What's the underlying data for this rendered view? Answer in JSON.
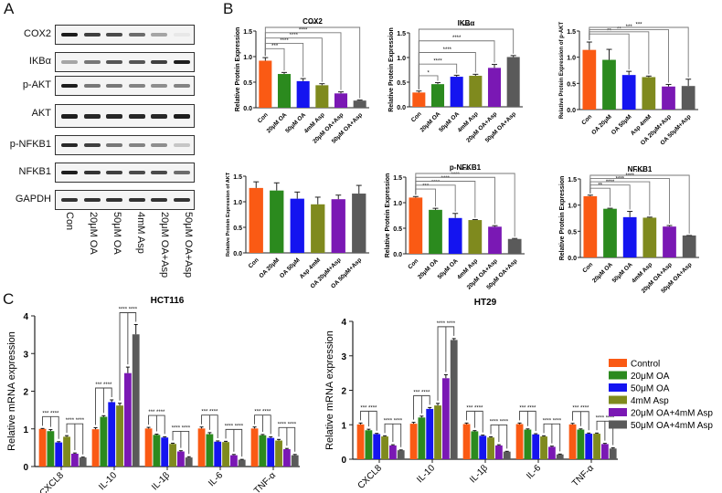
{
  "panels": {
    "a": "A",
    "b": "B",
    "c": "C"
  },
  "blot": {
    "proteins": [
      "COX2",
      "IKBα",
      "p-AKT",
      "AKT",
      "p-NFKB1",
      "NFKB1",
      "GAPDH"
    ],
    "lanes": [
      "Con",
      "20μM OA",
      "50μM OA",
      "4mM Asp",
      "20μM OA+Asp",
      "50μM OA+Asp"
    ],
    "band_intensity": [
      [
        0.95,
        0.8,
        0.75,
        0.6,
        0.35,
        0.05
      ],
      [
        0.35,
        0.55,
        0.7,
        0.7,
        0.8,
        0.95
      ],
      [
        0.95,
        0.55,
        0.55,
        0.5,
        0.45,
        0.5
      ],
      [
        0.95,
        0.9,
        0.9,
        0.9,
        0.9,
        0.95
      ],
      [
        0.9,
        0.8,
        0.55,
        0.5,
        0.45,
        0.2
      ],
      [
        0.95,
        0.85,
        0.8,
        0.75,
        0.75,
        0.6
      ],
      [
        0.85,
        0.85,
        0.85,
        0.85,
        0.85,
        0.85
      ]
    ]
  },
  "chart_data": [
    {
      "type": "bar",
      "title": "COX2",
      "ylabel": "Relative Protein Expression",
      "categories": [
        "Con",
        "20μM OA",
        "50μM OA",
        "4mM Asp",
        "20μM OA+Asp",
        "50μM OA+Asp"
      ],
      "values": [
        0.92,
        0.66,
        0.52,
        0.44,
        0.28,
        0.14
      ],
      "errors": [
        0.06,
        0.03,
        0.05,
        0.03,
        0.03,
        0.01
      ],
      "significance": [
        "***",
        "****",
        "****",
        "****",
        "****"
      ],
      "ylim": [
        0,
        1.5
      ],
      "yticks": [
        "0.0",
        "0.5",
        "1.0",
        "1.5"
      ]
    },
    {
      "type": "bar",
      "title": "IKBα",
      "ylabel": "Relative Protein Expression",
      "categories": [
        "Con",
        "20μM OA",
        "50μM OA",
        "4mM Asp",
        "20μM OA+Asp",
        "50μM OA+Asp"
      ],
      "values": [
        0.29,
        0.46,
        0.61,
        0.63,
        0.79,
        1.01
      ],
      "errors": [
        0.03,
        0.03,
        0.03,
        0.03,
        0.07,
        0.03
      ],
      "significance": [
        "*",
        "****",
        "****",
        "****",
        "****"
      ],
      "ylim": [
        0,
        1.5
      ],
      "yticks": [
        "0.0",
        "0.5",
        "1.0",
        "1.5"
      ]
    },
    {
      "type": "bar",
      "title": "",
      "ylabel": "Relative Protein Expression of p-AKT",
      "categories": [
        "Con",
        "OA 20μM",
        "OA 50μM",
        "Asp 4mM",
        "OA 20μM+Asp",
        "OA 50μM+Asp"
      ],
      "values": [
        1.14,
        0.95,
        0.66,
        0.62,
        0.44,
        0.45
      ],
      "errors": [
        0.15,
        0.2,
        0.07,
        0.02,
        0.04,
        0.13
      ],
      "significance": [
        "",
        "**",
        "**",
        "***",
        "***"
      ],
      "ylim": [
        0,
        1.5
      ],
      "yticks": [
        "0.0",
        "0.5",
        "1.0",
        "1.5"
      ]
    },
    {
      "type": "bar",
      "title": "",
      "ylabel": "Relative Protein Expression of AKT",
      "categories": [
        "Con",
        "OA 20μM",
        "OA 50μM",
        "Asp 4mM",
        "OA 20μM+Asp",
        "OA 50μM+Asp"
      ],
      "values": [
        1.27,
        1.22,
        1.06,
        0.95,
        1.05,
        1.16
      ],
      "errors": [
        0.12,
        0.15,
        0.13,
        0.14,
        0.08,
        0.16
      ],
      "significance": [
        "",
        "",
        "",
        "",
        ""
      ],
      "ylim": [
        0,
        1.5
      ],
      "yticks": [
        "0.0",
        "0.5",
        "1.0",
        "1.5"
      ]
    },
    {
      "type": "bar",
      "title": "p-NFKB1",
      "ylabel": "Relative Protein Expression",
      "categories": [
        "Con",
        "20μM OA",
        "50μM OA",
        "4mM Asp",
        "20μM OA+Asp",
        "50μM OA+Asp"
      ],
      "values": [
        1.1,
        0.86,
        0.7,
        0.66,
        0.53,
        0.29
      ],
      "errors": [
        0.02,
        0.03,
        0.09,
        0.01,
        0.02,
        0.01
      ],
      "significance": [
        "***",
        "****",
        "****",
        "****",
        "****"
      ],
      "ylim": [
        0,
        1.5
      ],
      "yticks": [
        "0.0",
        "0.5",
        "1.0",
        "1.5"
      ]
    },
    {
      "type": "bar",
      "title": "NFKB1",
      "ylabel": "Relative Protein Expression",
      "categories": [
        "Con",
        "20μM OA",
        "50μM OA",
        "4mM Asp",
        "20μM OA+Asp",
        "50μM OA+Asp"
      ],
      "values": [
        1.17,
        0.93,
        0.77,
        0.76,
        0.59,
        0.42
      ],
      "errors": [
        0.02,
        0.01,
        0.11,
        0.01,
        0.02,
        0.0
      ],
      "significance": [
        "**",
        "****",
        "****",
        "****",
        "****"
      ],
      "ylim": [
        0,
        1.5
      ],
      "yticks": [
        "0.0",
        "0.5",
        "1.0",
        "1.5"
      ]
    },
    {
      "type": "bar",
      "title": "HCT116",
      "ylabel": "Relative mRNA expression",
      "categories": [
        "CXCL8",
        "IL-10",
        "IL-1β",
        "IL-6",
        "TNF-α"
      ],
      "series": [
        {
          "name": "Control",
          "values": [
            1.0,
            0.99,
            1.01,
            1.01,
            1.01
          ],
          "errors": [
            0.01,
            0.04,
            0.03,
            0.04,
            0.04
          ]
        },
        {
          "name": "20μM OA",
          "values": [
            0.94,
            1.32,
            0.84,
            0.86,
            0.83
          ],
          "errors": [
            0.04,
            0.03,
            0.02,
            0.04,
            0.02
          ]
        },
        {
          "name": "50μM OA",
          "values": [
            0.64,
            1.71,
            0.77,
            0.66,
            0.76
          ],
          "errors": [
            0.02,
            0.06,
            0.02,
            0.02,
            0.03
          ]
        },
        {
          "name": "4mM Asp",
          "values": [
            0.79,
            1.62,
            0.6,
            0.65,
            0.69
          ],
          "errors": [
            0.03,
            0.06,
            0.02,
            0.02,
            0.03
          ]
        },
        {
          "name": "20μM OA+4mM Asp",
          "values": [
            0.34,
            2.48,
            0.4,
            0.3,
            0.46
          ],
          "errors": [
            0.02,
            0.16,
            0.02,
            0.02,
            0.02
          ]
        },
        {
          "name": "50μM OA+4mM Asp",
          "values": [
            0.24,
            3.51,
            0.24,
            0.18,
            0.3
          ],
          "errors": [
            0.01,
            0.26,
            0.02,
            0.01,
            0.02
          ]
        }
      ],
      "ylim": [
        0,
        4
      ],
      "yticks": [
        "0",
        "1",
        "2",
        "3",
        "4"
      ]
    },
    {
      "type": "bar",
      "title": "HT29",
      "ylabel": "Relative mRNA expression",
      "categories": [
        "CXCL8",
        "IL-10",
        "IL-1β",
        "IL-6",
        "TNF-α"
      ],
      "series": [
        {
          "name": "Control",
          "values": [
            1.01,
            1.03,
            1.02,
            1.02,
            1.01
          ],
          "errors": [
            0.04,
            0.04,
            0.03,
            0.03,
            0.03
          ]
        },
        {
          "name": "20μM OA",
          "values": [
            0.84,
            1.21,
            0.81,
            0.86,
            0.86
          ],
          "errors": [
            0.03,
            0.04,
            0.02,
            0.02,
            0.02
          ]
        },
        {
          "name": "50μM OA",
          "values": [
            0.73,
            1.46,
            0.68,
            0.72,
            0.74
          ],
          "errors": [
            0.02,
            0.04,
            0.02,
            0.02,
            0.02
          ]
        },
        {
          "name": "4mM Asp",
          "values": [
            0.66,
            1.56,
            0.63,
            0.66,
            0.74
          ],
          "errors": [
            0.02,
            0.06,
            0.02,
            0.02,
            0.02
          ]
        },
        {
          "name": "20μM OA+4mM Asp",
          "values": [
            0.4,
            2.35,
            0.4,
            0.36,
            0.44
          ],
          "errors": [
            0.02,
            0.1,
            0.02,
            0.02,
            0.02
          ]
        },
        {
          "name": "50μM OA+4mM Asp",
          "values": [
            0.26,
            3.46,
            0.22,
            0.14,
            0.31
          ],
          "errors": [
            0.01,
            0.04,
            0.01,
            0.01,
            0.02
          ]
        }
      ],
      "ylim": [
        0,
        4
      ],
      "yticks": [
        "0",
        "1",
        "2",
        "3",
        "4"
      ]
    }
  ],
  "legend": {
    "items": [
      "Control",
      "20μM OA",
      "50μM OA",
      "4mM Asp",
      "20μM OA+4mM Asp",
      "50μM OA+4mM Asp"
    ],
    "placement": "right"
  },
  "colors": [
    "#fa5a14",
    "#2b8a1e",
    "#1414f0",
    "#7f8a1e",
    "#7a18b4",
    "#5a5a5a"
  ]
}
